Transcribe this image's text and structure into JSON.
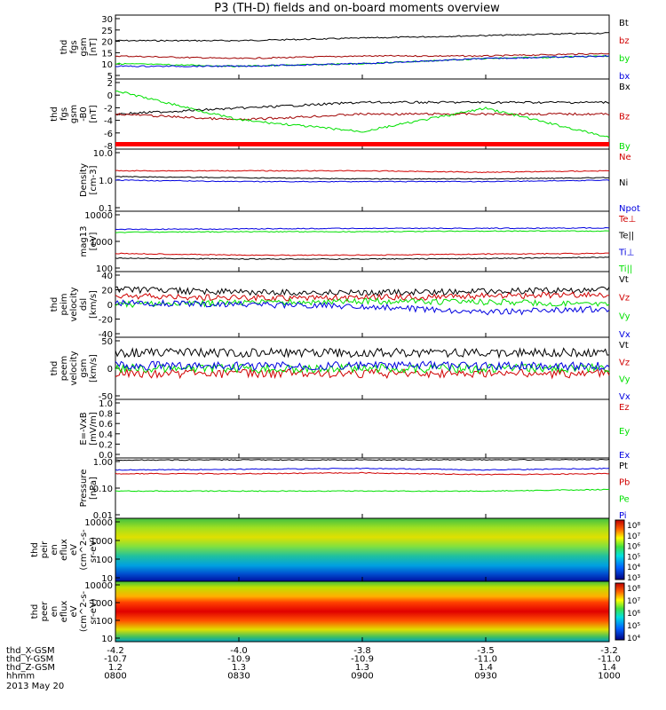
{
  "title": "P3 (TH-D) fields and on-board moments overview",
  "colors": {
    "black": "#000000",
    "red": "#d00000",
    "green": "#00e000",
    "blue": "#0000e0",
    "dkred": "#a00000"
  },
  "panels": [
    {
      "ylabel": [
        "thd",
        "fgs",
        "gsm",
        "[nT]"
      ],
      "ticks": [
        "30",
        "25",
        "20",
        "15",
        "10",
        "5"
      ],
      "legend": [
        {
          "t": "Bt",
          "c": "black"
        },
        {
          "t": "bz",
          "c": "red"
        },
        {
          "t": "by",
          "c": "green"
        },
        {
          "t": "bx",
          "c": "blue"
        }
      ]
    },
    {
      "ylabel": [
        "thd",
        "fgs",
        "gsm",
        "-B0",
        "[nT]"
      ],
      "ticks": [
        "2",
        "0",
        "-2",
        "-4",
        "-6",
        "-8"
      ],
      "legend": [
        {
          "t": "Bx",
          "c": "black"
        },
        {
          "t": "Bz",
          "c": "red"
        },
        {
          "t": "By",
          "c": "green"
        }
      ]
    },
    {
      "ylabel": [
        "Density",
        "[cm-3]"
      ],
      "ticks": [
        "10.0",
        "1.0",
        "0.1"
      ],
      "legend": [
        {
          "t": "Ne",
          "c": "red"
        },
        {
          "t": "Ni",
          "c": "black"
        },
        {
          "t": "Npot",
          "c": "blue"
        }
      ]
    },
    {
      "ylabel": [
        "mag13",
        "[eV]"
      ],
      "ticks": [
        "10000",
        "1000",
        "100"
      ],
      "legend": [
        {
          "t": "Te⊥",
          "c": "red"
        },
        {
          "t": "Te||",
          "c": "black"
        },
        {
          "t": "Ti⊥",
          "c": "blue"
        },
        {
          "t": "Ti||",
          "c": "green"
        }
      ]
    },
    {
      "ylabel": [
        "thd",
        "peim",
        "velocity",
        "dsl",
        "[km/s]"
      ],
      "ticks": [
        "40",
        "20",
        "0",
        "-20",
        "-40"
      ],
      "legend": [
        {
          "t": "Vt",
          "c": "black"
        },
        {
          "t": "Vz",
          "c": "red"
        },
        {
          "t": "Vy",
          "c": "green"
        },
        {
          "t": "Vx",
          "c": "blue"
        }
      ]
    },
    {
      "ylabel": [
        "thd",
        "peem",
        "velocity",
        "gsm",
        "[km/s]"
      ],
      "ticks": [
        "50",
        "0",
        "-50"
      ],
      "legend": [
        {
          "t": "Vt",
          "c": "black"
        },
        {
          "t": "Vz",
          "c": "red"
        },
        {
          "t": "Vy",
          "c": "green"
        },
        {
          "t": "Vx",
          "c": "blue"
        }
      ]
    },
    {
      "ylabel": [
        "E=-VxB",
        "[mV/m]"
      ],
      "ticks": [
        "1.0",
        "0.8",
        "0.6",
        "0.4",
        "0.2",
        "0.0"
      ],
      "legend": [
        {
          "t": "Ez",
          "c": "red"
        },
        {
          "t": "Ey",
          "c": "green"
        },
        {
          "t": "Ex",
          "c": "blue"
        }
      ]
    },
    {
      "ylabel": [
        "Pressure",
        "[nPa]"
      ],
      "ticks": [
        "1.00",
        "0.10",
        "0.01"
      ],
      "legend": [
        {
          "t": "Pt",
          "c": "black"
        },
        {
          "t": "Pb",
          "c": "red"
        },
        {
          "t": "Pe",
          "c": "green"
        },
        {
          "t": "Pi",
          "c": "blue"
        }
      ]
    },
    {
      "ylabel": [
        "thd",
        "peir",
        "en",
        "eflux",
        "eV",
        "(cm^2-s-",
        "sr-eV)"
      ],
      "ticks": [
        "10000",
        "1000",
        "100",
        "10"
      ],
      "cbar": [
        "10⁸",
        "10⁷",
        "10⁶",
        "10⁵",
        "10⁴",
        "10³"
      ]
    },
    {
      "ylabel": [
        "thd",
        "peer",
        "en",
        "eflux",
        "eV",
        "(cm^2-s-",
        "sr-eV)"
      ],
      "ticks": [
        "10000",
        "1000",
        "100",
        "10"
      ],
      "cbar": [
        "10⁸",
        "10⁷",
        "10⁶",
        "10⁵",
        "10⁴"
      ]
    }
  ],
  "footer": {
    "rows": [
      {
        "label": "thd_X-GSM",
        "vals": [
          "-4.2",
          "-4.0",
          "-3.8",
          "-3.5",
          "-3.2"
        ]
      },
      {
        "label": "thd_Y-GSM",
        "vals": [
          "-10.7",
          "-10.9",
          "-10.9",
          "-11.0",
          "-11.0"
        ]
      },
      {
        "label": "thd_Z-GSM",
        "vals": [
          "1.2",
          "1.3",
          "1.3",
          "1.4",
          "1.4"
        ]
      },
      {
        "label": "hhmm",
        "vals": [
          "0800",
          "0830",
          "0900",
          "0930",
          "1000"
        ]
      }
    ],
    "date": "2013 May 20"
  },
  "chart_data": {
    "type": "line",
    "title": "P3 (TH-D) fields and on-board moments overview",
    "x": [
      "0800",
      "0830",
      "0900",
      "0930",
      "1000"
    ],
    "xlabel": "hhmm",
    "panels": [
      {
        "ylim": [
          5,
          30
        ],
        "series": [
          {
            "name": "Bt",
            "values": [
              20,
              20,
              21,
              22,
              23
            ]
          },
          {
            "name": "bz",
            "values": [
              14,
              13,
              14,
              14,
              15
            ]
          },
          {
            "name": "by",
            "values": [
              11,
              10,
              11,
              13,
              14
            ]
          },
          {
            "name": "bx",
            "values": [
              10,
              10,
              11,
              13,
              14
            ]
          }
        ]
      },
      {
        "ylim": [
          -9,
          3
        ],
        "series": [
          {
            "name": "Bx",
            "values": [
              -3,
              -2,
              -1,
              -1,
              -1
            ]
          },
          {
            "name": "Bz",
            "values": [
              -3,
              -4,
              -3,
              -3,
              -3
            ]
          },
          {
            "name": "By",
            "values": [
              1,
              -4,
              -6,
              -2,
              -7
            ]
          }
        ]
      },
      {
        "ylim": [
          0.1,
          10
        ],
        "log": true,
        "series": [
          {
            "name": "Ne",
            "values": [
              2,
              2,
              2,
              1.8,
              2
            ]
          },
          {
            "name": "Ni",
            "values": [
              1.3,
              1.2,
              1.1,
              1.1,
              1.2
            ]
          },
          {
            "name": "Npot",
            "values": [
              1.0,
              0.9,
              0.9,
              0.9,
              1.0
            ]
          }
        ]
      },
      {
        "ylim": [
          100,
          10000
        ],
        "log": true,
        "series": [
          {
            "name": "Te⊥",
            "values": [
              400,
              350,
              350,
              380,
              400
            ]
          },
          {
            "name": "Te||",
            "values": [
              280,
              260,
              260,
              270,
              300
            ]
          },
          {
            "name": "Ti⊥",
            "values": [
              2500,
              2600,
              2700,
              2700,
              2800
            ]
          },
          {
            "name": "Ti||",
            "values": [
              2000,
              2100,
              2100,
              2200,
              2200
            ]
          }
        ]
      },
      {
        "ylim": [
          -40,
          40
        ],
        "series": [
          {
            "name": "Vt",
            "values": [
              18,
              15,
              14,
              16,
              18
            ]
          },
          {
            "name": "Vz",
            "values": [
              10,
              8,
              8,
              10,
              12
            ]
          },
          {
            "name": "Vy",
            "values": [
              0,
              2,
              4,
              3,
              0
            ]
          },
          {
            "name": "Vx",
            "values": [
              2,
              0,
              -2,
              -10,
              -5
            ]
          }
        ]
      },
      {
        "ylim": [
          -60,
          60
        ],
        "series": [
          {
            "name": "Vt",
            "values": [
              30,
              30,
              30,
              30,
              30
            ]
          },
          {
            "name": "Vz",
            "values": [
              -10,
              -10,
              -10,
              -10,
              -10
            ]
          },
          {
            "name": "Vy",
            "values": [
              0,
              0,
              0,
              0,
              0
            ]
          },
          {
            "name": "Vx",
            "values": [
              5,
              5,
              5,
              5,
              5
            ]
          }
        ]
      },
      {
        "ylim": [
          0,
          1
        ],
        "series": []
      },
      {
        "ylim": [
          0.01,
          1
        ],
        "log": true,
        "series": [
          {
            "name": "Pt",
            "values": [
              0.85,
              0.86,
              0.86,
              0.87,
              0.88
            ]
          },
          {
            "name": "Pb",
            "values": [
              0.3,
              0.3,
              0.32,
              0.28,
              0.3
            ]
          },
          {
            "name": "Pe",
            "values": [
              0.08,
              0.08,
              0.08,
              0.08,
              0.09
            ]
          },
          {
            "name": "Pi",
            "values": [
              0.4,
              0.42,
              0.45,
              0.4,
              0.45
            ]
          }
        ]
      }
    ]
  }
}
